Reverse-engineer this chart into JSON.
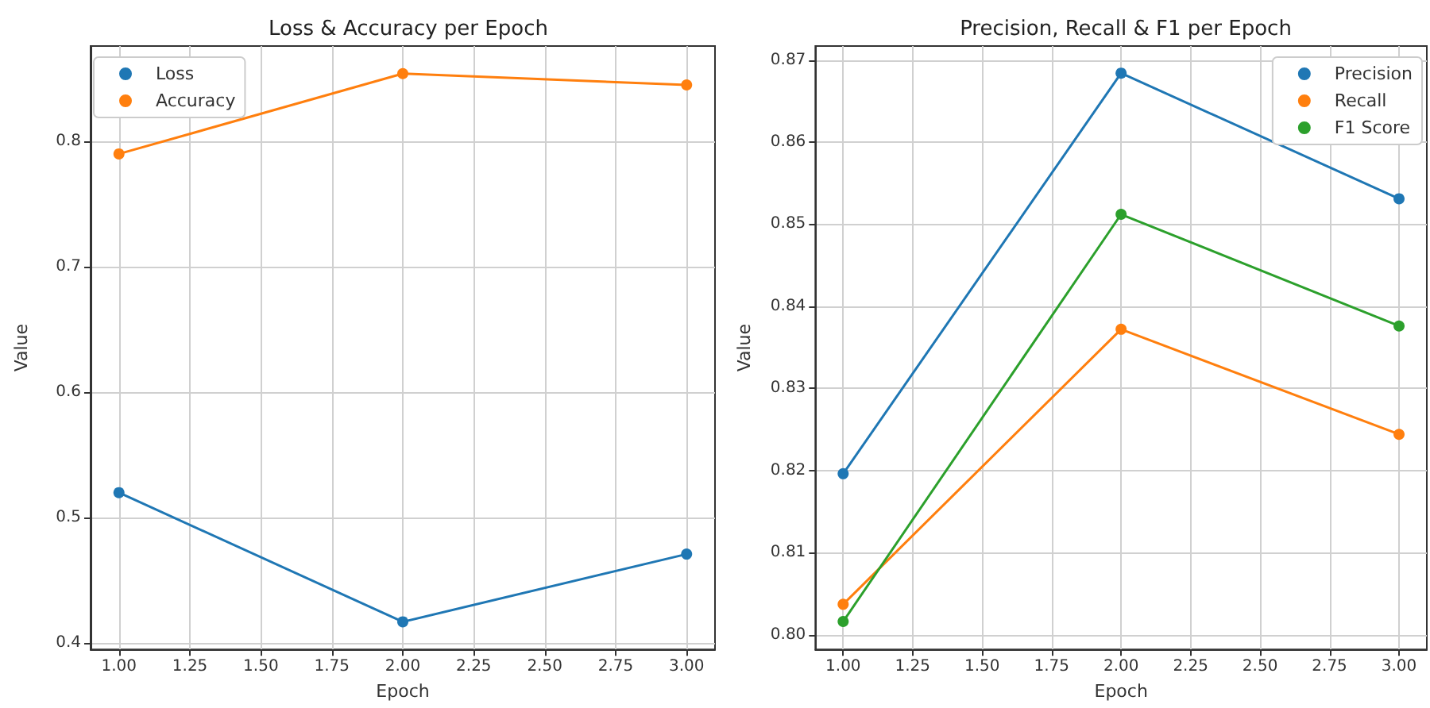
{
  "chart_data": [
    {
      "type": "line",
      "title": "Loss & Accuracy per Epoch",
      "xlabel": "Epoch",
      "ylabel": "Value",
      "x": [
        1,
        2,
        3
      ],
      "series": [
        {
          "name": "Loss",
          "color": "#1f77b4",
          "values": [
            0.52,
            0.417,
            0.471
          ]
        },
        {
          "name": "Accuracy",
          "color": "#ff7f0e",
          "values": [
            0.79,
            0.854,
            0.845
          ]
        }
      ],
      "xlim": [
        0.9,
        3.1
      ],
      "xticks": [
        {
          "value": 1,
          "label": "1.00"
        },
        {
          "value": 1.25,
          "label": "1.25"
        },
        {
          "value": 1.5,
          "label": "1.50"
        },
        {
          "value": 1.75,
          "label": "1.75"
        },
        {
          "value": 2,
          "label": "2.00"
        },
        {
          "value": 2.25,
          "label": "2.25"
        },
        {
          "value": 2.5,
          "label": "2.50"
        },
        {
          "value": 2.75,
          "label": "2.75"
        },
        {
          "value": 3,
          "label": "3.00"
        }
      ],
      "ylim": [
        0.395,
        0.876
      ],
      "yticks": [
        0.4,
        0.5,
        0.6,
        0.7,
        0.8
      ],
      "grid": true,
      "legend": "top left",
      "marker": "circle",
      "line_style": "solid"
    },
    {
      "type": "line",
      "title": "Precision, Recall & F1 per Epoch",
      "xlabel": "Epoch",
      "ylabel": "Value",
      "x": [
        1,
        2,
        3
      ],
      "series": [
        {
          "name": "Precision",
          "color": "#1f77b4",
          "values": [
            0.8196,
            0.8684,
            0.8531
          ]
        },
        {
          "name": "Recall",
          "color": "#ff7f0e",
          "values": [
            0.8037,
            0.8372,
            0.8244
          ]
        },
        {
          "name": "F1 Score",
          "color": "#2ca02c",
          "values": [
            0.8016,
            0.8512,
            0.8376
          ]
        }
      ],
      "xlim": [
        0.9,
        3.1
      ],
      "xticks": [
        {
          "value": 1,
          "label": "1.00"
        },
        {
          "value": 1.25,
          "label": "1.25"
        },
        {
          "value": 1.5,
          "label": "1.50"
        },
        {
          "value": 1.75,
          "label": "1.75"
        },
        {
          "value": 2,
          "label": "2.00"
        },
        {
          "value": 2.25,
          "label": "2.25"
        },
        {
          "value": 2.5,
          "label": "2.50"
        },
        {
          "value": 2.75,
          "label": "2.75"
        },
        {
          "value": 3,
          "label": "3.00"
        }
      ],
      "ylim": [
        0.7982,
        0.8717
      ],
      "yticks": [
        {
          "value": 0.8,
          "label": "0.80"
        },
        0.81,
        0.82,
        0.83,
        0.84,
        0.85,
        0.86,
        0.87
      ],
      "grid": true,
      "legend": "top right",
      "marker": "circle",
      "line_style": "solid"
    }
  ]
}
